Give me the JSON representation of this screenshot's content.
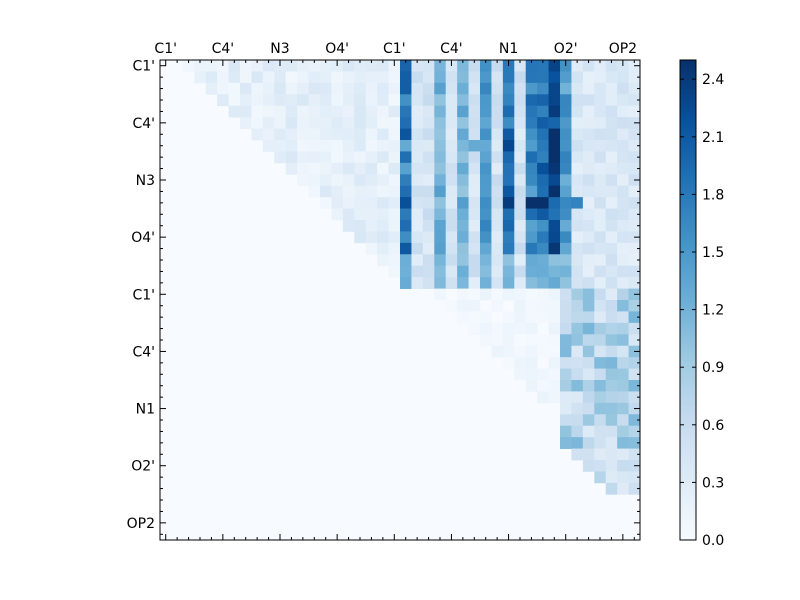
{
  "chart_data": {
    "type": "heatmap",
    "title": "",
    "xlabel": "",
    "ylabel": "",
    "x_tick_labels": [
      "C1'",
      "C4'",
      "N3",
      "O4'",
      "C1'",
      "C4'",
      "N1",
      "O2'",
      "OP2"
    ],
    "y_tick_labels": [
      "C1'",
      "C4'",
      "N3",
      "O4'",
      "C1'",
      "C4'",
      "N1",
      "O2'",
      "OP2"
    ],
    "tick_step": 5,
    "n_rows": 42,
    "n_cols": 42,
    "colorbar": {
      "vmin": 0.0,
      "vmax": 2.5,
      "ticks": [
        "0.0",
        "0.3",
        "0.6",
        "0.9",
        "1.2",
        "1.5",
        "1.8",
        "2.1",
        "2.4"
      ],
      "colors": [
        "#f7fbff",
        "#deebf7",
        "#c6dbef",
        "#9ecae1",
        "#6baed6",
        "#4292c6",
        "#2171b5",
        "#08519c",
        "#08306b"
      ]
    },
    "strong_columns": [
      {
        "col": 21,
        "v": 2.0
      },
      {
        "col": 24,
        "v": 1.3
      },
      {
        "col": 26,
        "v": 1.3
      },
      {
        "col": 28,
        "v": 1.6
      },
      {
        "col": 30,
        "v": 2.1
      },
      {
        "col": 32,
        "v": 1.8
      },
      {
        "col": 33,
        "v": 1.9
      },
      {
        "col": 34,
        "v": 2.4
      },
      {
        "col": 35,
        "v": 1.6
      }
    ],
    "dark_cells": [
      [
        2,
        34,
        2.3
      ],
      [
        3,
        33,
        2.0
      ],
      [
        4,
        34,
        2.4
      ],
      [
        6,
        34,
        2.5
      ],
      [
        6,
        30,
        2.1
      ],
      [
        8,
        34,
        2.5
      ],
      [
        9,
        33,
        2.2
      ],
      [
        12,
        21,
        2.2
      ],
      [
        12,
        30,
        2.4
      ],
      [
        12,
        32,
        2.5
      ],
      [
        12,
        33,
        2.5
      ],
      [
        11,
        34,
        2.5
      ],
      [
        13,
        33,
        2.1
      ],
      [
        14,
        21,
        1.9
      ],
      [
        9,
        26,
        1.3
      ],
      [
        9,
        21,
        1.4
      ],
      [
        10,
        24,
        1.2
      ],
      [
        7,
        21,
        1.3
      ],
      [
        7,
        27,
        1.3
      ],
      [
        12,
        36,
        1.7
      ],
      [
        13,
        35,
        1.6
      ]
    ],
    "block_values": {
      "upper_left": 0.25,
      "upper_right_light": 0.45,
      "lower_right": 0.35,
      "background": 0.0
    }
  }
}
